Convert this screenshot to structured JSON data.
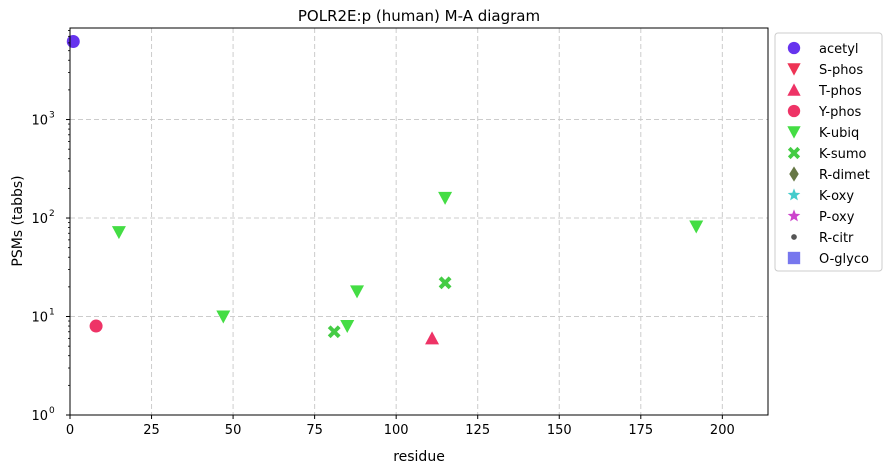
{
  "chart_data": {
    "type": "scatter",
    "title": "POLR2E:p (human) M-A diagram",
    "xlabel": "residue",
    "ylabel": "PSMs (tabbs)",
    "xlim": [
      0,
      214
    ],
    "ylim": [
      1,
      8500
    ],
    "yscale": "log",
    "grid": true,
    "legend_position": "outside-right",
    "x_ticks": [
      "0",
      "25",
      "50",
      "75",
      "100",
      "125",
      "150",
      "175",
      "200"
    ],
    "y_ticks": [
      {
        "value": 1,
        "label": "10",
        "exp": "0"
      },
      {
        "value": 10,
        "label": "10",
        "exp": "1"
      },
      {
        "value": 100,
        "label": "10",
        "exp": "2"
      },
      {
        "value": 1000,
        "label": "10",
        "exp": "3"
      }
    ],
    "series": [
      {
        "name": "acetyl",
        "marker": "circle",
        "color": "#6633ee",
        "points": [
          {
            "x": 1,
            "y": 6200
          }
        ]
      },
      {
        "name": "S-phos",
        "marker": "triangle-down",
        "color": "#ee3355",
        "points": []
      },
      {
        "name": "T-phos",
        "marker": "triangle-up",
        "color": "#ee3366",
        "points": [
          {
            "x": 111,
            "y": 6
          }
        ]
      },
      {
        "name": "Y-phos",
        "marker": "circle",
        "color": "#ee3366",
        "points": [
          {
            "x": 8,
            "y": 8
          }
        ]
      },
      {
        "name": "K-ubiq",
        "marker": "triangle-down",
        "color": "#44dd44",
        "points": [
          {
            "x": 15,
            "y": 72
          },
          {
            "x": 47,
            "y": 10
          },
          {
            "x": 85,
            "y": 8
          },
          {
            "x": 88,
            "y": 18
          },
          {
            "x": 115,
            "y": 160
          },
          {
            "x": 192,
            "y": 82
          }
        ]
      },
      {
        "name": "K-sumo",
        "marker": "x",
        "color": "#44cc44",
        "points": [
          {
            "x": 81,
            "y": 7
          },
          {
            "x": 115,
            "y": 22
          }
        ]
      },
      {
        "name": "R-dimet",
        "marker": "diamond",
        "color": "#667744",
        "points": []
      },
      {
        "name": "K-oxy",
        "marker": "star",
        "color": "#44cccc",
        "points": []
      },
      {
        "name": "P-oxy",
        "marker": "star",
        "color": "#cc44cc",
        "points": []
      },
      {
        "name": "R-citr",
        "marker": "dot",
        "color": "#555555",
        "points": []
      },
      {
        "name": "O-glyco",
        "marker": "square",
        "color": "#7777ee",
        "points": []
      }
    ]
  }
}
